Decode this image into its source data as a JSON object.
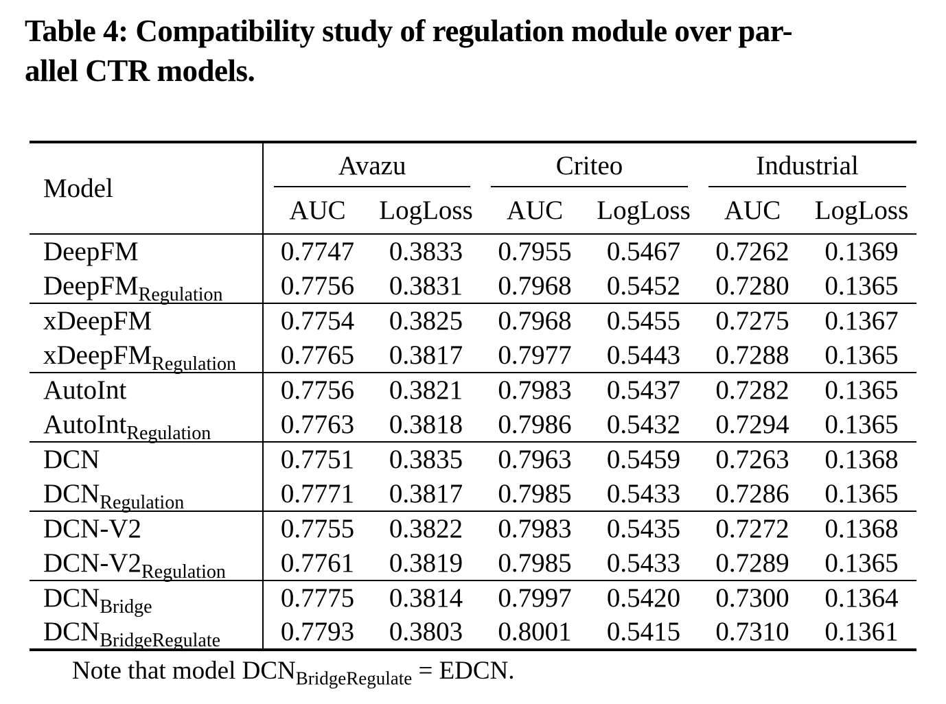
{
  "title": {
    "line1": "Table 4: Compatibility study of regulation module over par-",
    "line2": "allel CTR models."
  },
  "table": {
    "model_header": "Model",
    "groups": [
      {
        "label": "Avazu"
      },
      {
        "label": "Criteo"
      },
      {
        "label": "Industrial"
      }
    ],
    "subheaders": [
      "AUC",
      "LogLoss",
      "AUC",
      "LogLoss",
      "AUC",
      "LogLoss"
    ],
    "rows": [
      {
        "model": {
          "base": "DeepFM",
          "sub": ""
        },
        "values": [
          "0.7747",
          "0.3833",
          "0.7955",
          "0.5467",
          "0.7262",
          "0.1369"
        ]
      },
      {
        "model": {
          "base": "DeepFM",
          "sub": "Regulation"
        },
        "values": [
          "0.7756",
          "0.3831",
          "0.7968",
          "0.5452",
          "0.7280",
          "0.1365"
        ]
      },
      {
        "model": {
          "base": "xDeepFM",
          "sub": ""
        },
        "values": [
          "0.7754",
          "0.3825",
          "0.7968",
          "0.5455",
          "0.7275",
          "0.1367"
        ]
      },
      {
        "model": {
          "base": "xDeepFM",
          "sub": "Regulation"
        },
        "values": [
          "0.7765",
          "0.3817",
          "0.7977",
          "0.5443",
          "0.7288",
          "0.1365"
        ]
      },
      {
        "model": {
          "base": "AutoInt",
          "sub": ""
        },
        "values": [
          "0.7756",
          "0.3821",
          "0.7983",
          "0.5437",
          "0.7282",
          "0.1365"
        ]
      },
      {
        "model": {
          "base": "AutoInt",
          "sub": "Regulation"
        },
        "values": [
          "0.7763",
          "0.3818",
          "0.7986",
          "0.5432",
          "0.7294",
          "0.1365"
        ]
      },
      {
        "model": {
          "base": "DCN",
          "sub": ""
        },
        "values": [
          "0.7751",
          "0.3835",
          "0.7963",
          "0.5459",
          "0.7263",
          "0.1368"
        ]
      },
      {
        "model": {
          "base": "DCN",
          "sub": "Regulation"
        },
        "values": [
          "0.7771",
          "0.3817",
          "0.7985",
          "0.5433",
          "0.7286",
          "0.1365"
        ]
      },
      {
        "model": {
          "base": "DCN-V2",
          "sub": ""
        },
        "values": [
          "0.7755",
          "0.3822",
          "0.7983",
          "0.5435",
          "0.7272",
          "0.1368"
        ]
      },
      {
        "model": {
          "base": "DCN-V2",
          "sub": "Regulation"
        },
        "values": [
          "0.7761",
          "0.3819",
          "0.7985",
          "0.5433",
          "0.7289",
          "0.1365"
        ]
      },
      {
        "model": {
          "base": "DCN",
          "sub": "Bridge"
        },
        "values": [
          "0.7775",
          "0.3814",
          "0.7997",
          "0.5420",
          "0.7300",
          "0.1364"
        ]
      },
      {
        "model": {
          "base": "DCN",
          "sub": "BridgeRegulate"
        },
        "values": [
          "0.7793",
          "0.3803",
          "0.8001",
          "0.5415",
          "0.7310",
          "0.1361"
        ]
      }
    ]
  },
  "note": {
    "prefix": "Note that model DCN",
    "subscript": "BridgeRegulate",
    "suffix": " = EDCN."
  },
  "colors": {
    "text": "#000000",
    "background": "#ffffff",
    "rule": "#000000"
  }
}
